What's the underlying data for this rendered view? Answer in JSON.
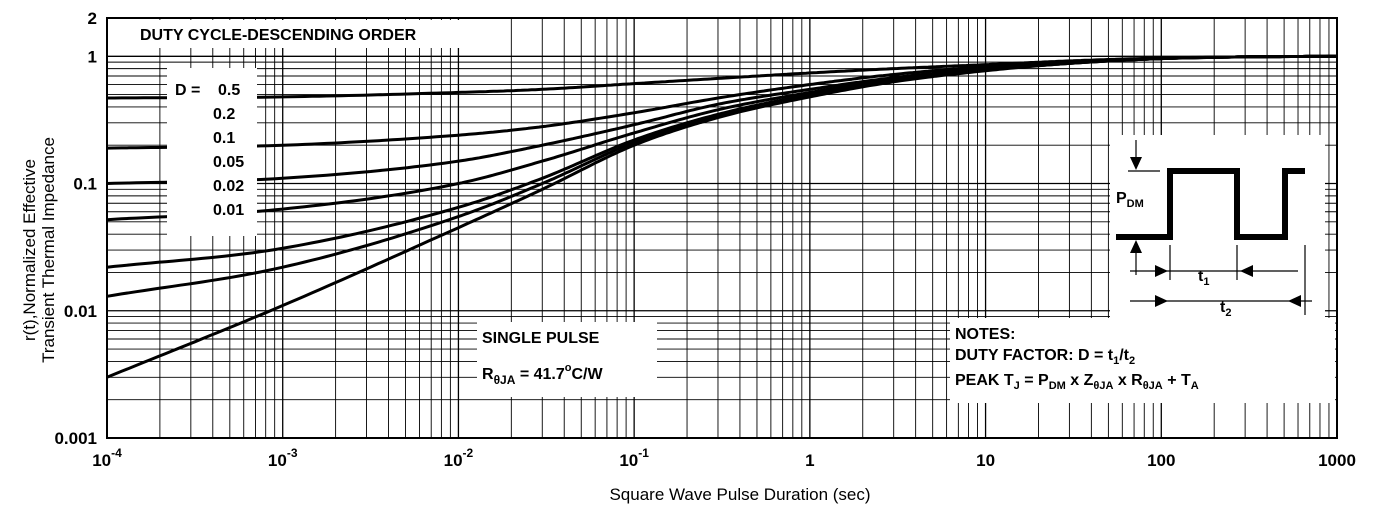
{
  "chart_data": {
    "type": "line",
    "xlabel": "Square Wave Pulse Duration (sec)",
    "ylabel_line1": "r(t),Normalized Effective",
    "ylabel_line2": "Transient Thermal Impedance",
    "x_scale": "log",
    "y_scale": "log",
    "xlim": [
      0.0001,
      1000
    ],
    "ylim": [
      0.001,
      2
    ],
    "grid": true,
    "x_ticks": [
      {
        "value": 0.0001,
        "base": "10",
        "exp": "-4"
      },
      {
        "value": 0.001,
        "base": "10",
        "exp": "-3"
      },
      {
        "value": 0.01,
        "base": "10",
        "exp": "-2"
      },
      {
        "value": 0.1,
        "base": "10",
        "exp": "-1"
      },
      {
        "value": 1,
        "base": "1",
        "exp": ""
      },
      {
        "value": 10,
        "base": "10",
        "exp": ""
      },
      {
        "value": 100,
        "base": "100",
        "exp": ""
      },
      {
        "value": 1000,
        "base": "1000",
        "exp": ""
      }
    ],
    "y_ticks": [
      {
        "value": 2,
        "label": "2"
      },
      {
        "value": 1,
        "label": "1"
      },
      {
        "value": 0.1,
        "label": "0.1"
      },
      {
        "value": 0.01,
        "label": "0.01"
      },
      {
        "value": 0.001,
        "label": "0.001"
      }
    ],
    "x": [
      0.0001,
      0.001,
      0.01,
      0.03,
      0.1,
      0.3,
      1,
      3,
      10,
      30,
      100,
      300,
      1000
    ],
    "series": [
      {
        "name": "0.5",
        "values": [
          0.47,
          0.48,
          0.52,
          0.55,
          0.61,
          0.67,
          0.74,
          0.8,
          0.86,
          0.92,
          0.97,
          0.99,
          1.0
        ]
      },
      {
        "name": "0.2",
        "values": [
          0.19,
          0.2,
          0.24,
          0.28,
          0.36,
          0.47,
          0.6,
          0.72,
          0.83,
          0.91,
          0.96,
          0.99,
          1.0
        ]
      },
      {
        "name": "0.1",
        "values": [
          0.1,
          0.11,
          0.15,
          0.2,
          0.29,
          0.42,
          0.55,
          0.68,
          0.8,
          0.89,
          0.96,
          0.99,
          1.0
        ]
      },
      {
        "name": "0.05",
        "values": [
          0.052,
          0.063,
          0.1,
          0.15,
          0.25,
          0.38,
          0.52,
          0.66,
          0.79,
          0.89,
          0.96,
          0.99,
          1.0
        ]
      },
      {
        "name": "0.02",
        "values": [
          0.022,
          0.031,
          0.065,
          0.11,
          0.22,
          0.35,
          0.5,
          0.65,
          0.78,
          0.88,
          0.96,
          0.99,
          1.0
        ]
      },
      {
        "name": "0.01",
        "values": [
          0.013,
          0.022,
          0.055,
          0.1,
          0.21,
          0.34,
          0.49,
          0.64,
          0.78,
          0.88,
          0.96,
          0.99,
          1.0
        ]
      },
      {
        "name": "SINGLE PULSE",
        "values": [
          0.003,
          0.011,
          0.045,
          0.09,
          0.2,
          0.33,
          0.48,
          0.63,
          0.77,
          0.88,
          0.96,
          0.99,
          1.0
        ]
      }
    ],
    "annotations": {
      "duty_title": "DUTY CYCLE-DESCENDING ORDER",
      "d_prefix": "D =",
      "d_values": [
        "0.5",
        "0.2",
        "0.1",
        "0.05",
        "0.02",
        "0.01"
      ],
      "single_pulse": "SINGLE PULSE",
      "rth_main": "R",
      "rth_sub": "θJA",
      "rth_eq": " = 41.7",
      "rth_deg": "o",
      "rth_unit": "C/W",
      "notes_title": "NOTES:",
      "notes_line1_pre": "DUTY FACTOR: D = t",
      "notes_line1_sub1": "1",
      "notes_line1_mid": "/t",
      "notes_line1_sub2": "2",
      "notes_line2_a": "PEAK T",
      "notes_line2_a_sub": "J",
      "notes_line2_b": " = P",
      "notes_line2_b_sub": "DM",
      "notes_line2_c": " x Z",
      "notes_line2_c_sub": "θJA",
      "notes_line2_d": " x R",
      "notes_line2_d_sub": "θJA",
      "notes_line2_e": " + T",
      "notes_line2_e_sub": "A",
      "pdm_main": "P",
      "pdm_sub": "DM",
      "t1_main": "t",
      "t1_sub": "1",
      "t2_main": "t",
      "t2_sub": "2"
    },
    "colors": {
      "line": "#000000",
      "grid": "#000000",
      "background": "#ffffff"
    }
  }
}
